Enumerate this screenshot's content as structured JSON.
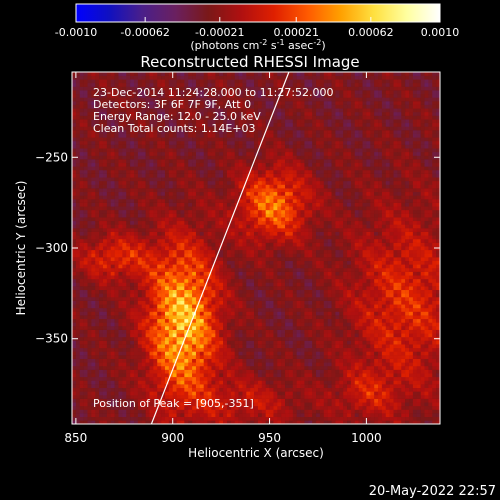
{
  "chart_data": {
    "type": "heatmap",
    "title": "Reconstructed RHESSI Image",
    "xlabel": "Heliocentric X (arcsec)",
    "ylabel": "Heliocentric Y (arcsec)",
    "xlim": [
      848,
      1038
    ],
    "ylim": [
      -397,
      -203
    ],
    "x_ticks": [
      850,
      900,
      950,
      1000
    ],
    "y_ticks": [
      -250,
      -300,
      -350
    ],
    "colorbar": {
      "range": [
        -0.001,
        0.001
      ],
      "ticks": [
        "-0.0010",
        "-0.00062",
        "-0.00021",
        "0.00021",
        "0.00062",
        "0.0010"
      ],
      "label": "(photons cm",
      "label_sup1": "-2",
      "label_mid": " s",
      "label_sup2": "-1",
      "label_mid2": " asec",
      "label_sup3": "-2",
      "label_end": ")",
      "colors": [
        "#0000ff",
        "#1010c0",
        "#4a1f8a",
        "#6a2060",
        "#7a1818",
        "#b01010",
        "#e02000",
        "#ff5a00",
        "#ffa000",
        "#ffe040",
        "#ffffa0",
        "#ffffff"
      ]
    },
    "info_lines": [
      "23-Dec-2014 11:24:28.000 to 11:27:52.000",
      "Detectors: 3F 6F 7F 9F, Att 0",
      "Energy Range: 12.0 - 25.0 keV",
      "Clean     Total counts: 1.14E+03"
    ],
    "peak_label": "Position of Peak = [905,-351]",
    "peak": [
      905,
      -351
    ],
    "limb_line": {
      "x1": 889,
      "y1": -397,
      "x2": 960,
      "y2": -203
    },
    "sources": [
      {
        "x": 905,
        "y": -341,
        "sx": 13,
        "sy": 30,
        "amp": 0.0011
      },
      {
        "x": 952,
        "y": -276,
        "sx": 13,
        "sy": 14,
        "amp": 0.00078
      },
      {
        "x": 870,
        "y": -305,
        "sx": 13,
        "sy": 9,
        "amp": 0.0005
      },
      {
        "x": 1020,
        "y": -330,
        "sx": 20,
        "sy": 35,
        "amp": 0.0005
      },
      {
        "x": 940,
        "y": -385,
        "sx": 20,
        "sy": 10,
        "amp": 0.00032
      },
      {
        "x": 1000,
        "y": -380,
        "sx": 12,
        "sy": 10,
        "amp": 0.00032
      }
    ]
  },
  "timestamp": "20-May-2022 22:57"
}
